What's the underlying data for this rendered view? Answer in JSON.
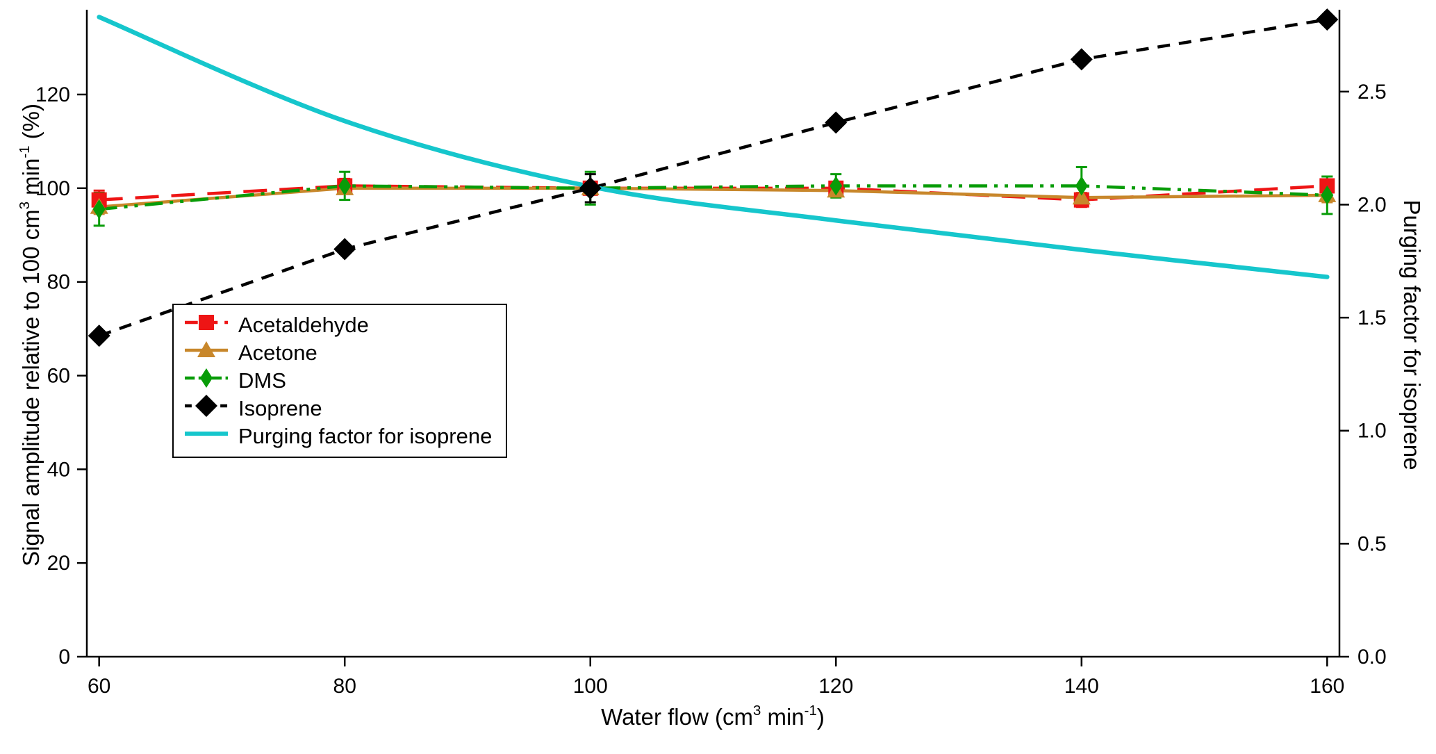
{
  "chart_data": {
    "type": "line",
    "x_label_parts": [
      {
        "t": "Water flow (cm"
      },
      {
        "t": "3",
        "sup": true
      },
      {
        "t": " min"
      },
      {
        "t": "-1",
        "sup": true
      },
      {
        "t": ")"
      }
    ],
    "y_left_label_parts": [
      {
        "t": "Signal amplitude relative to 100 cm"
      },
      {
        "t": "3",
        "sup": true
      },
      {
        "t": " min"
      },
      {
        "t": "-1",
        "sup": true
      },
      {
        "t": " (%)"
      }
    ],
    "y_right_label_parts": [
      {
        "t": "Purging factor for isoprene"
      }
    ],
    "x": [
      60,
      80,
      100,
      120,
      140,
      160
    ],
    "x_ticks": [
      "60",
      "80",
      "100",
      "120",
      "140",
      "160"
    ],
    "y_left_ticks": [
      "0",
      "20",
      "40",
      "60",
      "80",
      "100",
      "120"
    ],
    "y_right_ticks": [
      "0.0",
      "0.5",
      "1.0",
      "1.5",
      "2.0",
      "2.5"
    ],
    "x_range": [
      59,
      161
    ],
    "y_left_range": [
      0,
      137.5
    ],
    "y_right_range": [
      0,
      2.85
    ],
    "grid": false,
    "legend_position": "inside-center-left",
    "series": [
      {
        "name": "Acetaldehyde",
        "axis": "left",
        "color": "#ee1515",
        "line_style": "dashed-long",
        "marker": "square",
        "values": [
          97.5,
          100.5,
          100,
          100,
          97.5,
          100.5
        ],
        "errors": [
          2,
          1.5,
          1,
          1,
          1.5,
          2
        ]
      },
      {
        "name": "Acetone",
        "axis": "left",
        "color": "#c8872b",
        "line_style": "solid",
        "marker": "triangle",
        "values": [
          96,
          100,
          100,
          99.5,
          98,
          98.5
        ],
        "errors": [
          1.5,
          1,
          1,
          1,
          1,
          1.5
        ]
      },
      {
        "name": "DMS",
        "axis": "left",
        "color": "#089c08",
        "line_style": "dash-dot-dot",
        "marker": "diamond",
        "values": [
          95.5,
          100.5,
          100,
          100.5,
          100.5,
          98.5
        ],
        "errors": [
          3.5,
          3,
          3.5,
          2.5,
          4,
          4
        ]
      },
      {
        "name": "Isoprene",
        "axis": "left",
        "color": "#000000",
        "line_style": "dashed",
        "marker": "diamond-large",
        "values": [
          68.5,
          87,
          100,
          114,
          127.5,
          136
        ],
        "errors": [
          1,
          1,
          3,
          1,
          1,
          1
        ]
      },
      {
        "name": "Purging factor for isoprene",
        "axis": "right",
        "color": "#16c6cc",
        "line_style": "solid",
        "marker": "none",
        "smooth": true,
        "values": [
          2.83,
          2.37,
          2.08,
          1.93,
          1.8,
          1.68
        ]
      }
    ],
    "legend": {
      "items": [
        "Acetaldehyde",
        "Acetone",
        "DMS",
        "Isoprene",
        "Purging factor for isoprene"
      ]
    }
  }
}
